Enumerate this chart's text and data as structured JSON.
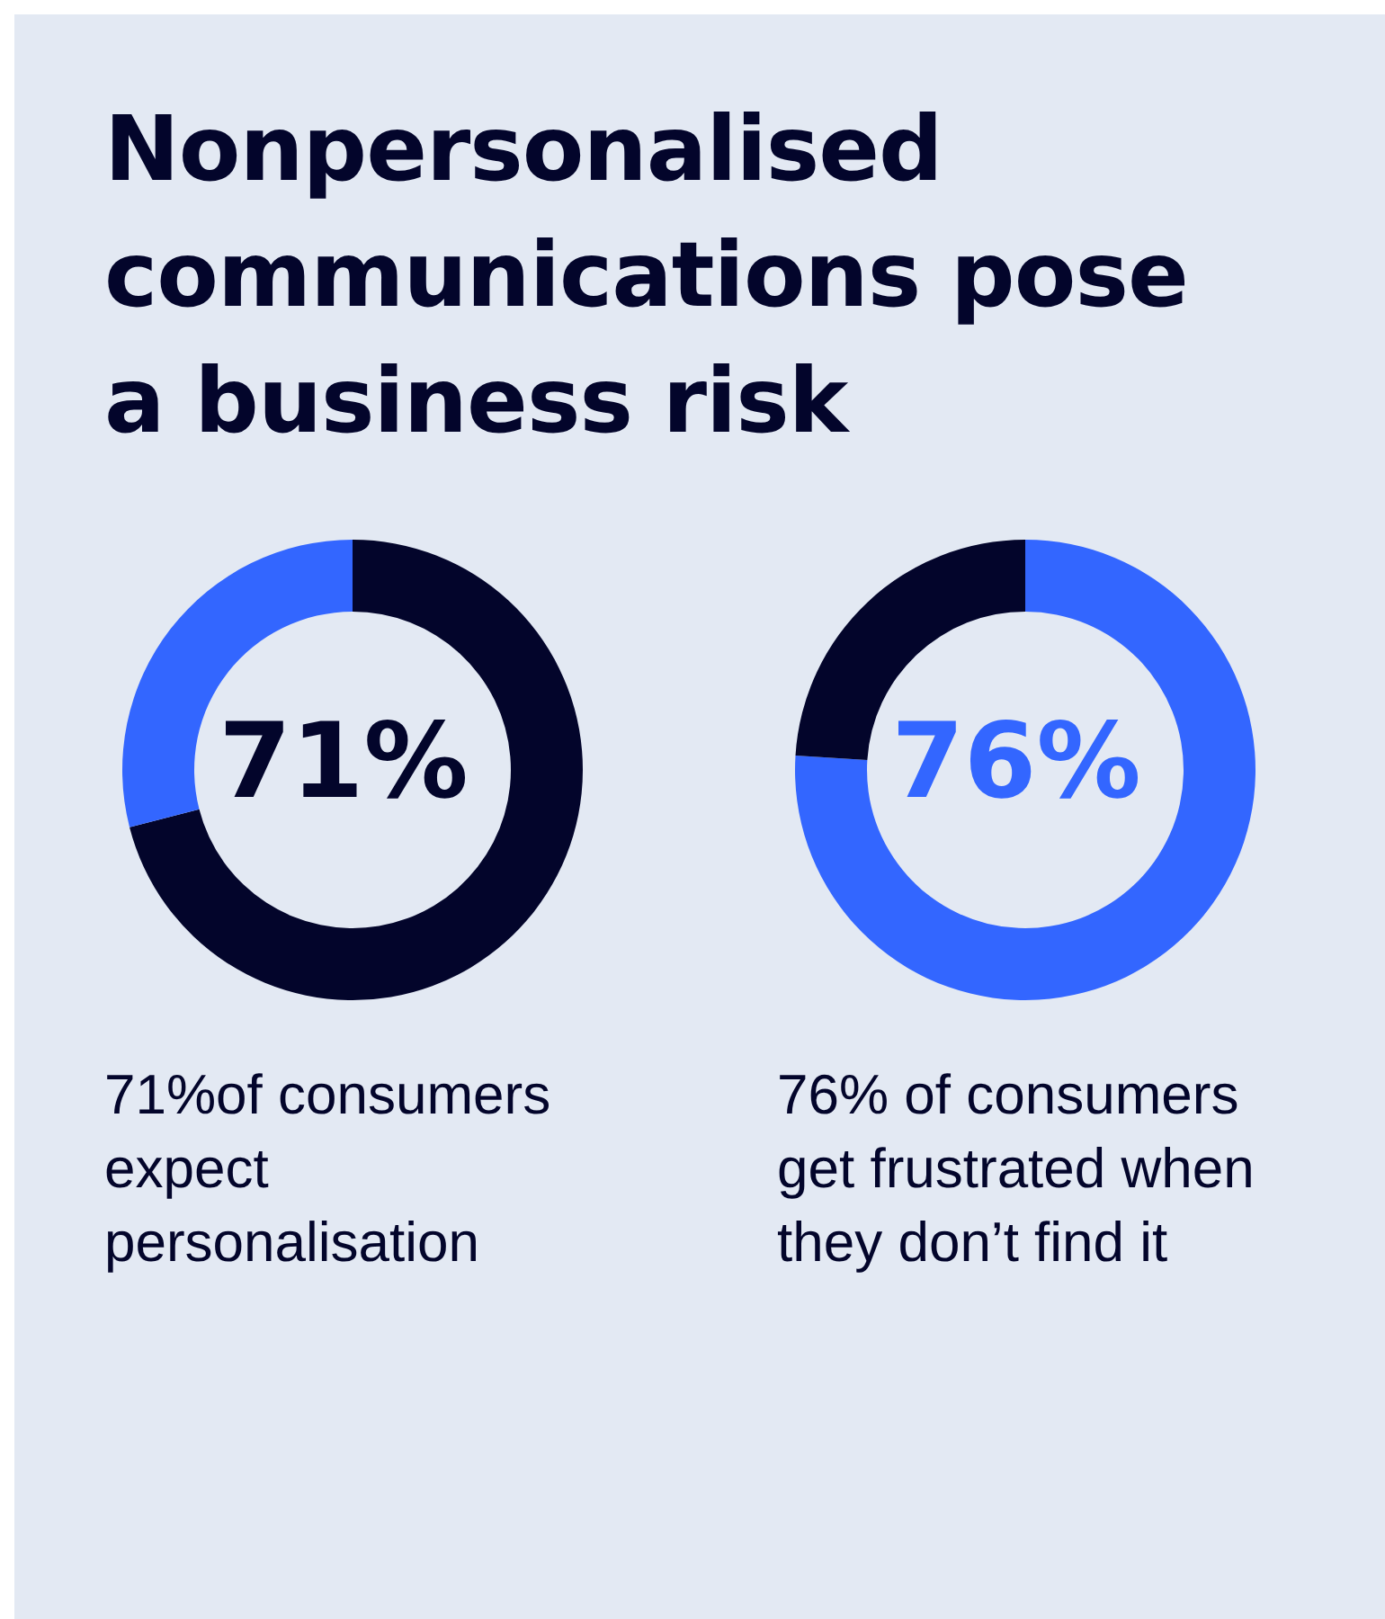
{
  "chart_data": [
    {
      "type": "donut",
      "title": "Nonpersonalised communications pose a business risk",
      "categories": [
        null,
        null
      ],
      "values": [
        71,
        29
      ],
      "colors": [
        "#03052b",
        "#3366ff"
      ],
      "annotations": [
        "71%",
        "71%of consumers expect personalisation"
      ]
    },
    {
      "type": "donut",
      "categories": [
        null,
        null
      ],
      "values": [
        76,
        24
      ],
      "colors": [
        "#3366ff",
        "#03052b"
      ],
      "annotations": [
        "76%",
        "76% of consumers get frustrated when they don’t find it"
      ]
    }
  ]
}
